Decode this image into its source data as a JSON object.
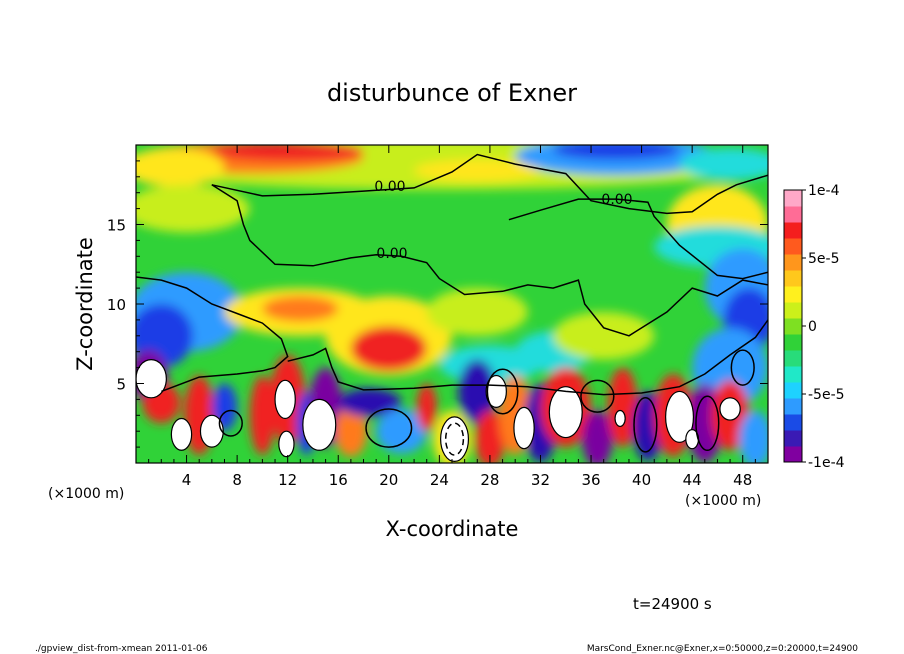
{
  "chart_data": {
    "type": "heatmap",
    "title": "disturbunce of Exner",
    "xlabel": "X-coordinate",
    "ylabel": "Z-coordinate",
    "x_unit_label": "(×1000 m)",
    "x_unit_label_right": "(×1000 m)",
    "xlim": [
      0,
      50
    ],
    "ylim": [
      0,
      20
    ],
    "x_ticks": [
      "4",
      "8",
      "12",
      "16",
      "20",
      "24",
      "28",
      "32",
      "36",
      "40",
      "44",
      "48"
    ],
    "y_ticks": [
      "5",
      "10",
      "15"
    ],
    "x_tick_values": [
      4,
      8,
      12,
      16,
      20,
      24,
      28,
      32,
      36,
      40,
      44,
      48
    ],
    "y_tick_values": [
      5,
      10,
      15
    ],
    "colorbar": {
      "min": -0.0001,
      "max": 0.0001,
      "labels": [
        "1e-4",
        "5e-5",
        "0",
        "-5e-5",
        "-1e-4"
      ],
      "label_values": [
        0.0001,
        5e-05,
        0,
        -5e-05,
        -0.0001
      ],
      "colors": [
        "#8000a0",
        "#3a1ab4",
        "#1a4be6",
        "#2e9bff",
        "#1ed2ff",
        "#20e8c8",
        "#28dc7a",
        "#30d238",
        "#7ee022",
        "#ccf01a",
        "#fff01e",
        "#ffc81c",
        "#ff961c",
        "#ff5a1e",
        "#f41e1e",
        "#ff6c96",
        "#ffa8c8"
      ]
    },
    "contour_labels": [
      "0.00",
      "0.00",
      "0.00"
    ],
    "contour_level": 0.0,
    "regions": [
      {
        "name": "upper-left-positive",
        "x": [
          0,
          18
        ],
        "z": [
          17,
          20
        ],
        "value": 6e-05
      },
      {
        "name": "upper-right-negative",
        "x": [
          30,
          46
        ],
        "z": [
          18,
          20
        ],
        "value": -6e-05
      },
      {
        "name": "mid-positive-band",
        "x": [
          8,
          26
        ],
        "z": [
          6,
          10
        ],
        "value": 4e-05
      },
      {
        "name": "right-negative-band",
        "x": [
          41,
          50
        ],
        "z": [
          5,
          12
        ],
        "value": -5e-05
      },
      {
        "name": "lower-oscillations",
        "x": [
          0,
          50
        ],
        "z": [
          0,
          6
        ],
        "value_range": [
          -0.0001,
          0.0001
        ]
      }
    ],
    "annotation": "t=24900 s"
  },
  "footer": {
    "left": "./gpview_dist-from-xmean  2011-01-06",
    "right": "MarsCond_Exner.nc@Exner,x=0:50000,z=0:20000,t=24900"
  }
}
